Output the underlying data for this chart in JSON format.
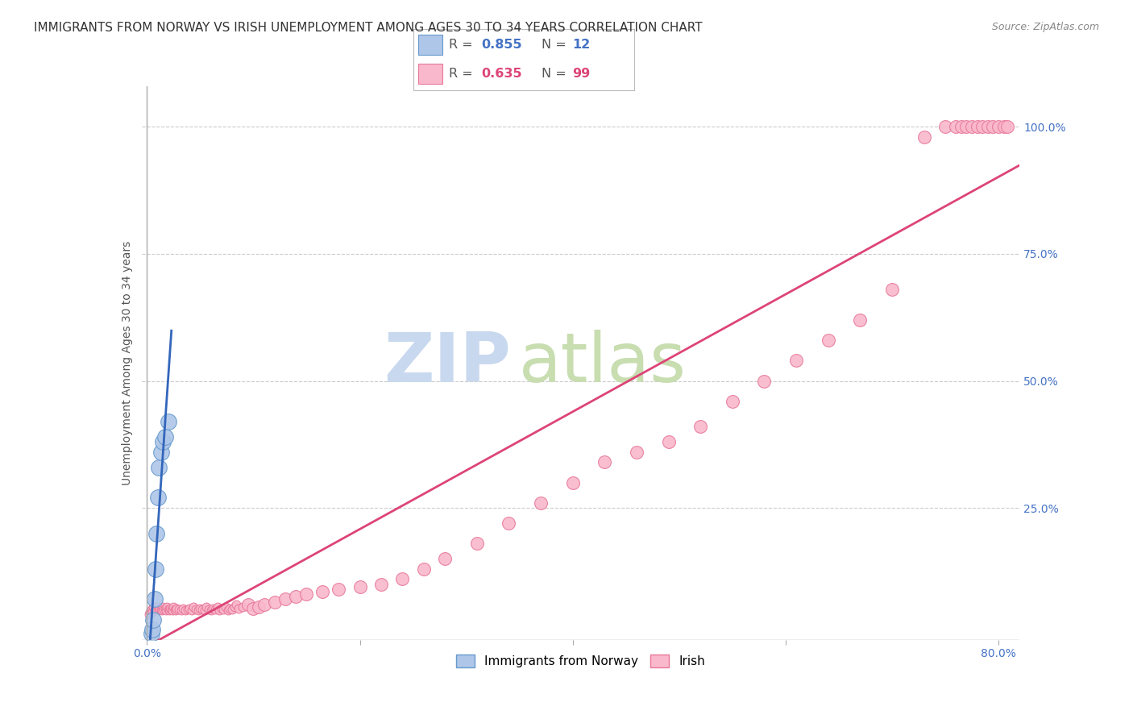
{
  "title": "IMMIGRANTS FROM NORWAY VS IRISH UNEMPLOYMENT AMONG AGES 30 TO 34 YEARS CORRELATION CHART",
  "source": "Source: ZipAtlas.com",
  "ylabel": "Unemployment Among Ages 30 to 34 years",
  "xlim": [
    -0.005,
    0.82
  ],
  "ylim": [
    -0.01,
    1.08
  ],
  "xtick_vals": [
    0.0,
    0.2,
    0.4,
    0.6,
    0.8
  ],
  "xtick_labels": [
    "0.0%",
    "",
    "",
    "",
    "80.0%"
  ],
  "yticks_right": [
    0.25,
    0.5,
    0.75,
    1.0
  ],
  "ytick_labels_right": [
    "25.0%",
    "50.0%",
    "75.0%",
    "100.0%"
  ],
  "grid_color": "#cccccc",
  "background_color": "#ffffff",
  "norway_color": "#aec6e8",
  "norway_edge": "#6699cc",
  "irish_color": "#f9b8cb",
  "irish_edge": "#e8789a",
  "norway_R": 0.855,
  "norway_N": 12,
  "irish_R": 0.635,
  "irish_N": 99,
  "norway_line_color": "#3366bb",
  "irish_line_color": "#dd4477",
  "norway_scatter_x": [
    0.004,
    0.005,
    0.006,
    0.007,
    0.008,
    0.009,
    0.01,
    0.011,
    0.013,
    0.015,
    0.017,
    0.02
  ],
  "norway_scatter_y": [
    0.003,
    0.01,
    0.03,
    0.07,
    0.13,
    0.2,
    0.27,
    0.33,
    0.36,
    0.38,
    0.39,
    0.42
  ],
  "irish_scatter_x": [
    0.002,
    0.003,
    0.004,
    0.005,
    0.006,
    0.007,
    0.008,
    0.009,
    0.01,
    0.011,
    0.012,
    0.013,
    0.014,
    0.015,
    0.016,
    0.017,
    0.018,
    0.019,
    0.02,
    0.021,
    0.022,
    0.023,
    0.024,
    0.025,
    0.026,
    0.027,
    0.028,
    0.03,
    0.032,
    0.034,
    0.036,
    0.038,
    0.04,
    0.042,
    0.044,
    0.046,
    0.048,
    0.05,
    0.052,
    0.054,
    0.056,
    0.058,
    0.06,
    0.062,
    0.064,
    0.066,
    0.068,
    0.07,
    0.072,
    0.074,
    0.076,
    0.078,
    0.08,
    0.082,
    0.084,
    0.086,
    0.09,
    0.095,
    0.1,
    0.105,
    0.11,
    0.12,
    0.13,
    0.14,
    0.15,
    0.165,
    0.18,
    0.2,
    0.22,
    0.24,
    0.26,
    0.28,
    0.31,
    0.34,
    0.37,
    0.4,
    0.43,
    0.46,
    0.49,
    0.52,
    0.55,
    0.58,
    0.61,
    0.64,
    0.67,
    0.7,
    0.73,
    0.75,
    0.76,
    0.765,
    0.77,
    0.775,
    0.78,
    0.785,
    0.79,
    0.795,
    0.8,
    0.805,
    0.808
  ],
  "irish_scatter_y": [
    0.04,
    0.045,
    0.05,
    0.045,
    0.055,
    0.048,
    0.052,
    0.05,
    0.055,
    0.048,
    0.052,
    0.05,
    0.048,
    0.055,
    0.05,
    0.052,
    0.048,
    0.055,
    0.05,
    0.048,
    0.052,
    0.05,
    0.048,
    0.055,
    0.05,
    0.048,
    0.052,
    0.05,
    0.048,
    0.052,
    0.048,
    0.05,
    0.052,
    0.048,
    0.055,
    0.05,
    0.048,
    0.052,
    0.05,
    0.048,
    0.055,
    0.05,
    0.048,
    0.052,
    0.05,
    0.055,
    0.048,
    0.052,
    0.05,
    0.055,
    0.048,
    0.052,
    0.05,
    0.055,
    0.06,
    0.052,
    0.055,
    0.06,
    0.052,
    0.055,
    0.06,
    0.065,
    0.07,
    0.075,
    0.08,
    0.085,
    0.09,
    0.095,
    0.1,
    0.11,
    0.13,
    0.15,
    0.18,
    0.22,
    0.26,
    0.3,
    0.34,
    0.36,
    0.38,
    0.41,
    0.46,
    0.5,
    0.54,
    0.58,
    0.62,
    0.68,
    0.98,
    1.0,
    1.0,
    1.0,
    1.0,
    1.0,
    1.0,
    1.0,
    1.0,
    1.0,
    1.0,
    1.0,
    1.0
  ],
  "watermark_zip": "ZIP",
  "watermark_atlas": "atlas",
  "watermark_color_zip": "#c8d8ee",
  "watermark_color_atlas": "#c8ddb0",
  "title_fontsize": 11,
  "axis_label_fontsize": 10,
  "tick_fontsize": 10,
  "legend_fontsize": 12,
  "norway_label": "Immigrants from Norway",
  "irish_label": "Irish",
  "r_color_norway": "#4472c4",
  "r_color_irish": "#dd4477"
}
